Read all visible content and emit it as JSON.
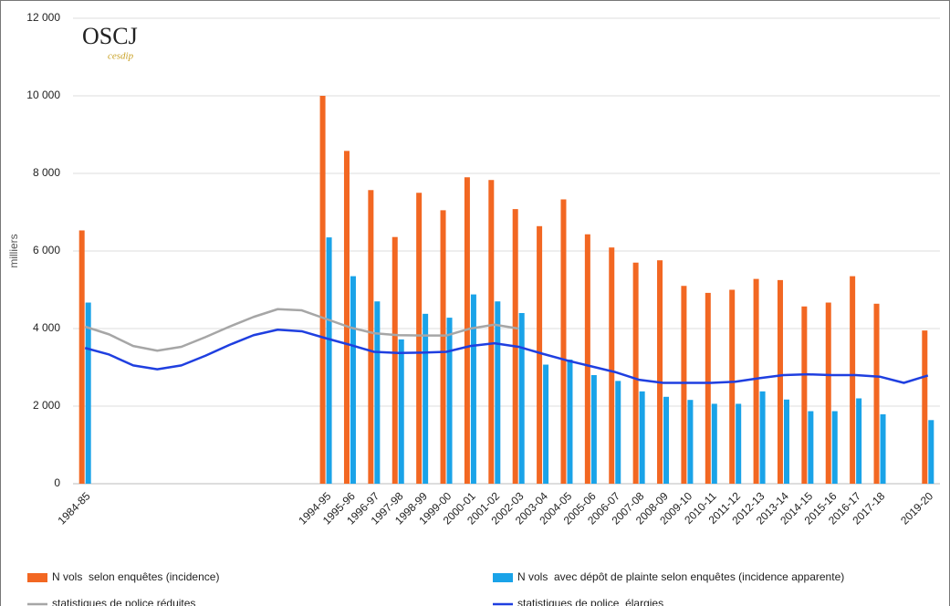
{
  "chart_data": {
    "type": "bar",
    "logo": {
      "title": "OSCJ",
      "subtitle": "cesdip"
    },
    "y_label": "milliers",
    "categories": [
      "1984-85",
      null,
      null,
      null,
      null,
      null,
      null,
      null,
      null,
      null,
      "1994-95",
      "1995-96",
      "1996-97",
      "1997-98",
      "1998-99",
      "1999-00",
      "2000-01",
      "2001-02",
      "2002-03",
      "2003-04",
      "2004-05",
      "2005-06",
      "2006-07",
      "2007-08",
      "2008-09",
      "2009-10",
      "2010-11",
      "2011-12",
      "2012-13",
      "2013-14",
      "2014-15",
      "2015-16",
      "2016-17",
      "2017-18",
      null,
      "2019-20"
    ],
    "series": [
      {
        "name": "N vols  selon enquêtes (incidence)",
        "color": "#f26722",
        "kind": "bar",
        "values": [
          6530,
          null,
          null,
          null,
          null,
          null,
          null,
          null,
          null,
          null,
          10000,
          8580,
          7570,
          6360,
          7500,
          7050,
          7900,
          7830,
          7080,
          6640,
          7330,
          6430,
          6090,
          5700,
          5760,
          5100,
          4920,
          5000,
          5280,
          5250,
          4570,
          4670,
          5350,
          4640,
          null,
          3950
        ]
      },
      {
        "name": "N vols  avec dépôt de plainte selon enquêtes (incidence apparente)",
        "color": "#1aa3e8",
        "kind": "bar",
        "values": [
          4670,
          null,
          null,
          null,
          null,
          null,
          null,
          null,
          null,
          null,
          6350,
          5350,
          4700,
          3720,
          4380,
          4280,
          4880,
          4700,
          4400,
          3070,
          3200,
          2800,
          2650,
          2380,
          2240,
          2160,
          2060,
          2060,
          2380,
          2170,
          1870,
          1870,
          2200,
          1790,
          null,
          1640
        ]
      },
      {
        "name": "statistiques de police réduites",
        "color": "#a6a6a6",
        "kind": "line",
        "values": [
          4050,
          3850,
          3550,
          3430,
          3530,
          3780,
          4050,
          4300,
          4500,
          4470,
          4250,
          4030,
          3880,
          3830,
          3820,
          3820,
          4000,
          4100,
          4000,
          null,
          null,
          null,
          null,
          null,
          null,
          null,
          null,
          null,
          null,
          null,
          null,
          null,
          null,
          null,
          null,
          null
        ]
      },
      {
        "name": "statistiques de police  élargies",
        "color": "#1f3fe0",
        "kind": "line",
        "values": [
          3500,
          3330,
          3050,
          2950,
          3050,
          3300,
          3580,
          3830,
          3970,
          3930,
          3750,
          3580,
          3400,
          3370,
          3380,
          3400,
          3550,
          3620,
          3530,
          3350,
          3180,
          3030,
          2880,
          2680,
          2600,
          2600,
          2600,
          2630,
          2720,
          2800,
          2820,
          2800,
          2800,
          2760,
          2600,
          2790
        ]
      }
    ],
    "ylim": [
      0,
      12000
    ],
    "yticks": [
      0,
      {
        "value": 2000,
        "label": "2 000"
      },
      {
        "value": 4000,
        "label": "4 000"
      },
      {
        "value": 6000,
        "label": "6 000"
      },
      {
        "value": 8000,
        "label": "8 000"
      },
      {
        "value": 10000,
        "label": "10 000"
      },
      {
        "value": 12000,
        "label": "12 000"
      }
    ],
    "grid": true,
    "legend": "bottom"
  }
}
